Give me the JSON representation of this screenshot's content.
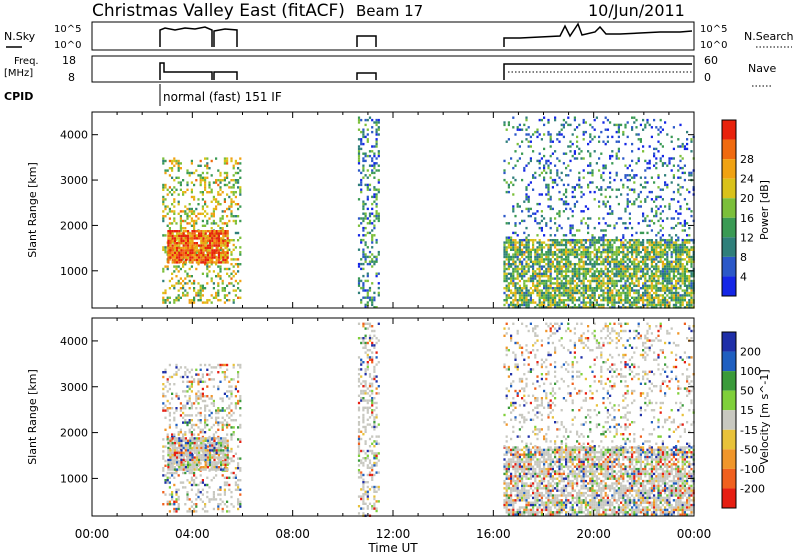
{
  "header": {
    "title": "Christmas Valley East (fitACF)",
    "beam": "Beam 17",
    "date": "10/Jun/2011"
  },
  "top_panels": {
    "nsky_label": "N.Sky",
    "nsky_ticks": [
      "10^5",
      "10^0"
    ],
    "nsearch_label": "N.Search",
    "nsearch_ticks": [
      "10^5",
      "10^0"
    ],
    "freq_label_1": "Freq.",
    "freq_label_2": "[MHz]",
    "freq_ticks": [
      "18",
      "8"
    ],
    "nave_label": "Nave",
    "nave_ticks": [
      "60",
      "0"
    ],
    "cpid_label": "CPID",
    "cpid_text": "normal (fast) 151 IF"
  },
  "colors": {
    "power_scale": [
      "#1426e6",
      "#2b58c8",
      "#2f7f7a",
      "#3a9a54",
      "#7bbf3a",
      "#d9c21a",
      "#f0a212",
      "#f06a0f",
      "#e8220c"
    ],
    "velocity_scale": [
      "#1f2fa8",
      "#1f5fc0",
      "#3a9a3a",
      "#7fcf3a",
      "#c8c8c0",
      "#e8c23a",
      "#f0962a",
      "#f0601e",
      "#e61e12"
    ]
  },
  "chart_data": [
    {
      "type": "heatmap",
      "panel": "power",
      "ylabel": "Slant Range [km]",
      "ylim": [
        180,
        4500
      ],
      "yticks": [
        1000,
        2000,
        3000,
        4000
      ],
      "xlim": [
        0,
        24
      ],
      "colorbar_label": "Power [dB]",
      "colorbar_ticks": [
        "4",
        "8",
        "12",
        "16",
        "20",
        "24",
        "28"
      ],
      "scatter_regions": [
        {
          "t": [
            2.8,
            5.9
          ],
          "r": [
            300,
            3500
          ],
          "density": 0.3,
          "bias": 0.55
        },
        {
          "t": [
            3.0,
            5.4
          ],
          "r": [
            1200,
            1900
          ],
          "density": 0.9,
          "bias": 0.85
        },
        {
          "t": [
            10.6,
            11.4
          ],
          "r": [
            200,
            4400
          ],
          "density": 0.35,
          "bias": 0.3
        },
        {
          "t": [
            16.4,
            24.0
          ],
          "r": [
            200,
            1700
          ],
          "density": 0.75,
          "bias": 0.45
        },
        {
          "t": [
            16.4,
            24.0
          ],
          "r": [
            1700,
            4400
          ],
          "density": 0.18,
          "bias": 0.25
        }
      ]
    },
    {
      "type": "heatmap",
      "panel": "velocity",
      "ylabel": "Slant Range [km]",
      "ylim": [
        180,
        4500
      ],
      "yticks": [
        1000,
        2000,
        3000,
        4000
      ],
      "xlim": [
        0,
        24
      ],
      "xticks": [
        "00:00",
        "04:00",
        "08:00",
        "12:00",
        "16:00",
        "20:00",
        "00:00"
      ],
      "xlabel": "Time UT",
      "colorbar_label": "Velocity [m s^-1]",
      "colorbar_ticks": [
        "200",
        "100",
        "50",
        "15",
        "-15",
        "-50",
        "-100",
        "-200"
      ],
      "scatter_regions": [
        {
          "t": [
            2.8,
            5.9
          ],
          "r": [
            300,
            3500
          ],
          "density": 0.3,
          "bias": 0.5
        },
        {
          "t": [
            3.0,
            5.4
          ],
          "r": [
            1200,
            1900
          ],
          "density": 0.9,
          "bias": 0.45
        },
        {
          "t": [
            10.6,
            11.4
          ],
          "r": [
            200,
            4400
          ],
          "density": 0.35,
          "bias": 0.65
        },
        {
          "t": [
            16.4,
            24.0
          ],
          "r": [
            200,
            1700
          ],
          "density": 0.75,
          "bias": 0.5
        },
        {
          "t": [
            16.4,
            24.0
          ],
          "r": [
            1700,
            4400
          ],
          "density": 0.18,
          "bias": 0.5
        }
      ]
    }
  ]
}
